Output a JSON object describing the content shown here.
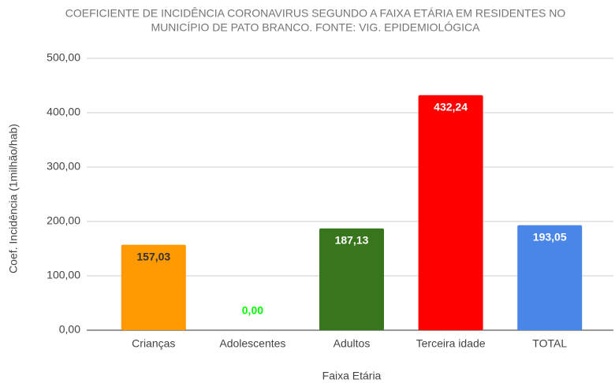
{
  "chart_data": {
    "type": "bar",
    "title": [
      "COEFICIENTE DE INCIDÊNCIA CORONAVIRUS SEGUNDO A FAIXA ETÁRIA EM RESIDENTES NO",
      "MUNICÍPIO DE PATO BRANCO. FONTE: VIG. EPIDEMIOLÓGICA"
    ],
    "x_label": "Faixa Etária",
    "y_label": "Coef. Incidência (1milhão/hab)",
    "categories": [
      "Crianças",
      "Adolescentes",
      "Adultos",
      "Terceira idade",
      "TOTAL"
    ],
    "values": [
      157.03,
      0,
      187.13,
      432.24,
      193.05
    ],
    "value_labels": [
      "157,03",
      "0,00",
      "187,13",
      "432,24",
      "193,05"
    ],
    "colors": [
      "#ff9900",
      "#00ff00",
      "#38761d",
      "#ff0000",
      "#4a86e8"
    ],
    "value_label_colors": [
      "#333333",
      "#00ff00",
      "#ffffff",
      "#ffffff",
      "#ffffff"
    ],
    "ylim": [
      0,
      500
    ],
    "yticks": [
      {
        "value": 0,
        "label": "0,00"
      },
      {
        "value": 100,
        "label": "100,00"
      },
      {
        "value": 200,
        "label": "200,00"
      },
      {
        "value": 300,
        "label": "300,00"
      },
      {
        "value": 400,
        "label": "400,00"
      },
      {
        "value": 500,
        "label": "500,00"
      }
    ],
    "grid": true
  }
}
